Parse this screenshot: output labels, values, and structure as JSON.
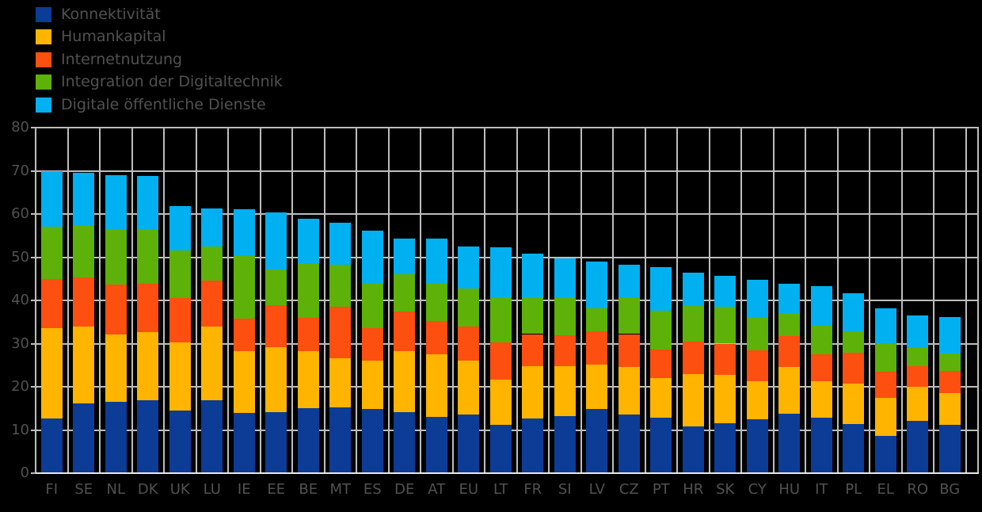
{
  "page": {
    "background_color": "#000000",
    "grid_color": "#bdbdbd",
    "axis_line_color": "#e8e8e8",
    "text_color": "#515151"
  },
  "chart_data": {
    "type": "bar",
    "stacked": true,
    "title": "",
    "xlabel": "",
    "ylabel": "",
    "ylim": [
      0,
      80
    ],
    "yticks": [
      0,
      10,
      20,
      30,
      40,
      50,
      60,
      70,
      80
    ],
    "grid": true,
    "legend_position": "top-left",
    "categories": [
      "FI",
      "SE",
      "NL",
      "DK",
      "UK",
      "LU",
      "IE",
      "EE",
      "BE",
      "MT",
      "ES",
      "DE",
      "AT",
      "EU",
      "LT",
      "FR",
      "SI",
      "LV",
      "CZ",
      "PT",
      "HR",
      "SK",
      "CY",
      "HU",
      "IT",
      "PL",
      "EL",
      "RO",
      "BG"
    ],
    "series": [
      {
        "name": "Konnektivität",
        "color": "#0c3c96",
        "values": [
          12.6,
          16.1,
          16.6,
          16.9,
          14.5,
          16.9,
          14.0,
          14.2,
          15.0,
          15.3,
          14.8,
          14.2,
          13.1,
          13.5,
          11.2,
          12.6,
          13.2,
          14.9,
          13.5,
          12.8,
          10.9,
          11.5,
          12.4,
          13.7,
          12.9,
          11.4,
          8.7,
          12.1,
          11.2
        ]
      },
      {
        "name": "Humankapital",
        "color": "#ffb400",
        "values": [
          21.0,
          17.8,
          15.5,
          15.7,
          15.7,
          17.0,
          14.2,
          15.0,
          13.2,
          11.3,
          11.3,
          14.0,
          14.5,
          12.6,
          10.4,
          12.1,
          11.5,
          10.3,
          11.1,
          9.2,
          12.0,
          11.2,
          8.9,
          10.8,
          8.4,
          9.4,
          8.7,
          7.9,
          7.3
        ]
      },
      {
        "name": "Internetnutzung",
        "color": "#fc4f10",
        "values": [
          11.4,
          11.5,
          11.6,
          11.3,
          10.4,
          10.6,
          7.6,
          9.7,
          7.8,
          11.9,
          7.5,
          9.3,
          7.7,
          7.8,
          8.6,
          7.5,
          7.2,
          7.7,
          7.6,
          6.6,
          7.5,
          7.3,
          7.1,
          7.2,
          6.3,
          7.1,
          6.0,
          4.8,
          5.1
        ]
      },
      {
        "name": "Integration der Digitaltechnik",
        "color": "#5db108",
        "values": [
          12.1,
          12.1,
          12.9,
          12.4,
          10.9,
          7.9,
          14.5,
          8.3,
          12.6,
          9.7,
          10.2,
          8.6,
          8.6,
          8.8,
          10.3,
          8.4,
          8.6,
          5.3,
          8.6,
          9.0,
          8.3,
          8.5,
          7.8,
          5.4,
          6.6,
          5.0,
          6.7,
          4.4,
          4.1
        ]
      },
      {
        "name": "Digitale öffentliche Dienste",
        "color": "#00b0f0",
        "values": [
          12.8,
          12.0,
          12.3,
          12.5,
          10.4,
          8.8,
          10.8,
          13.1,
          10.3,
          9.7,
          12.3,
          8.3,
          10.4,
          9.8,
          11.8,
          10.2,
          9.3,
          10.7,
          7.4,
          10.1,
          7.7,
          7.2,
          8.6,
          6.8,
          9.1,
          8.7,
          8.0,
          7.3,
          8.5
        ]
      }
    ]
  }
}
